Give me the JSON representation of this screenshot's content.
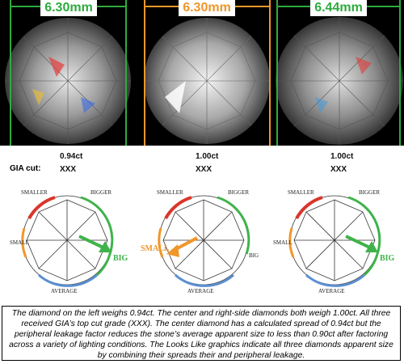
{
  "measurements": [
    "6.30mm",
    "6.30mm",
    "6.44mm"
  ],
  "measurement_colors": [
    "#2eaa3f",
    "#f0962a",
    "#2eaa3f"
  ],
  "gia_cut_label": "GIA cut:",
  "diamonds": [
    {
      "weight": "0.94ct",
      "cut": "XXX",
      "indicator": "BIG",
      "indicator_color": "#3fb34a"
    },
    {
      "weight": "1.00ct",
      "cut": "XXX",
      "indicator": "SMALL",
      "indicator_color": "#f0962a"
    },
    {
      "weight": "1.00ct",
      "cut": "XXX",
      "indicator": "BIG",
      "indicator_color": "#3fb34a"
    }
  ],
  "gauge_labels": {
    "smaller": "SMALLER",
    "bigger": "BIGGER",
    "small": "SMALL",
    "big": "BIG",
    "average": "AVERAGE"
  },
  "gauge_colors": {
    "smaller_arc": "#d9362b",
    "small_arc": "#f0962a",
    "average_arc": "#5b8fd0",
    "big_arc": "#3fb34a",
    "bigger_arc": "#3fb34a"
  },
  "caption": "The diamond on the left weighs 0.94ct. The center and right-side diamonds both weigh 1.00ct. All three received GIA’s top cut grade (XXX). The center diamond has a calculated spread of 0.94ct but the peripheral leakage factor reduces the stone’s average apparent size to less than 0.90ct after factoring across a variety of lighting conditions. The Looks Like graphics indicate all three diamonds apparent size by combining their spreads their and peripheral leakage."
}
